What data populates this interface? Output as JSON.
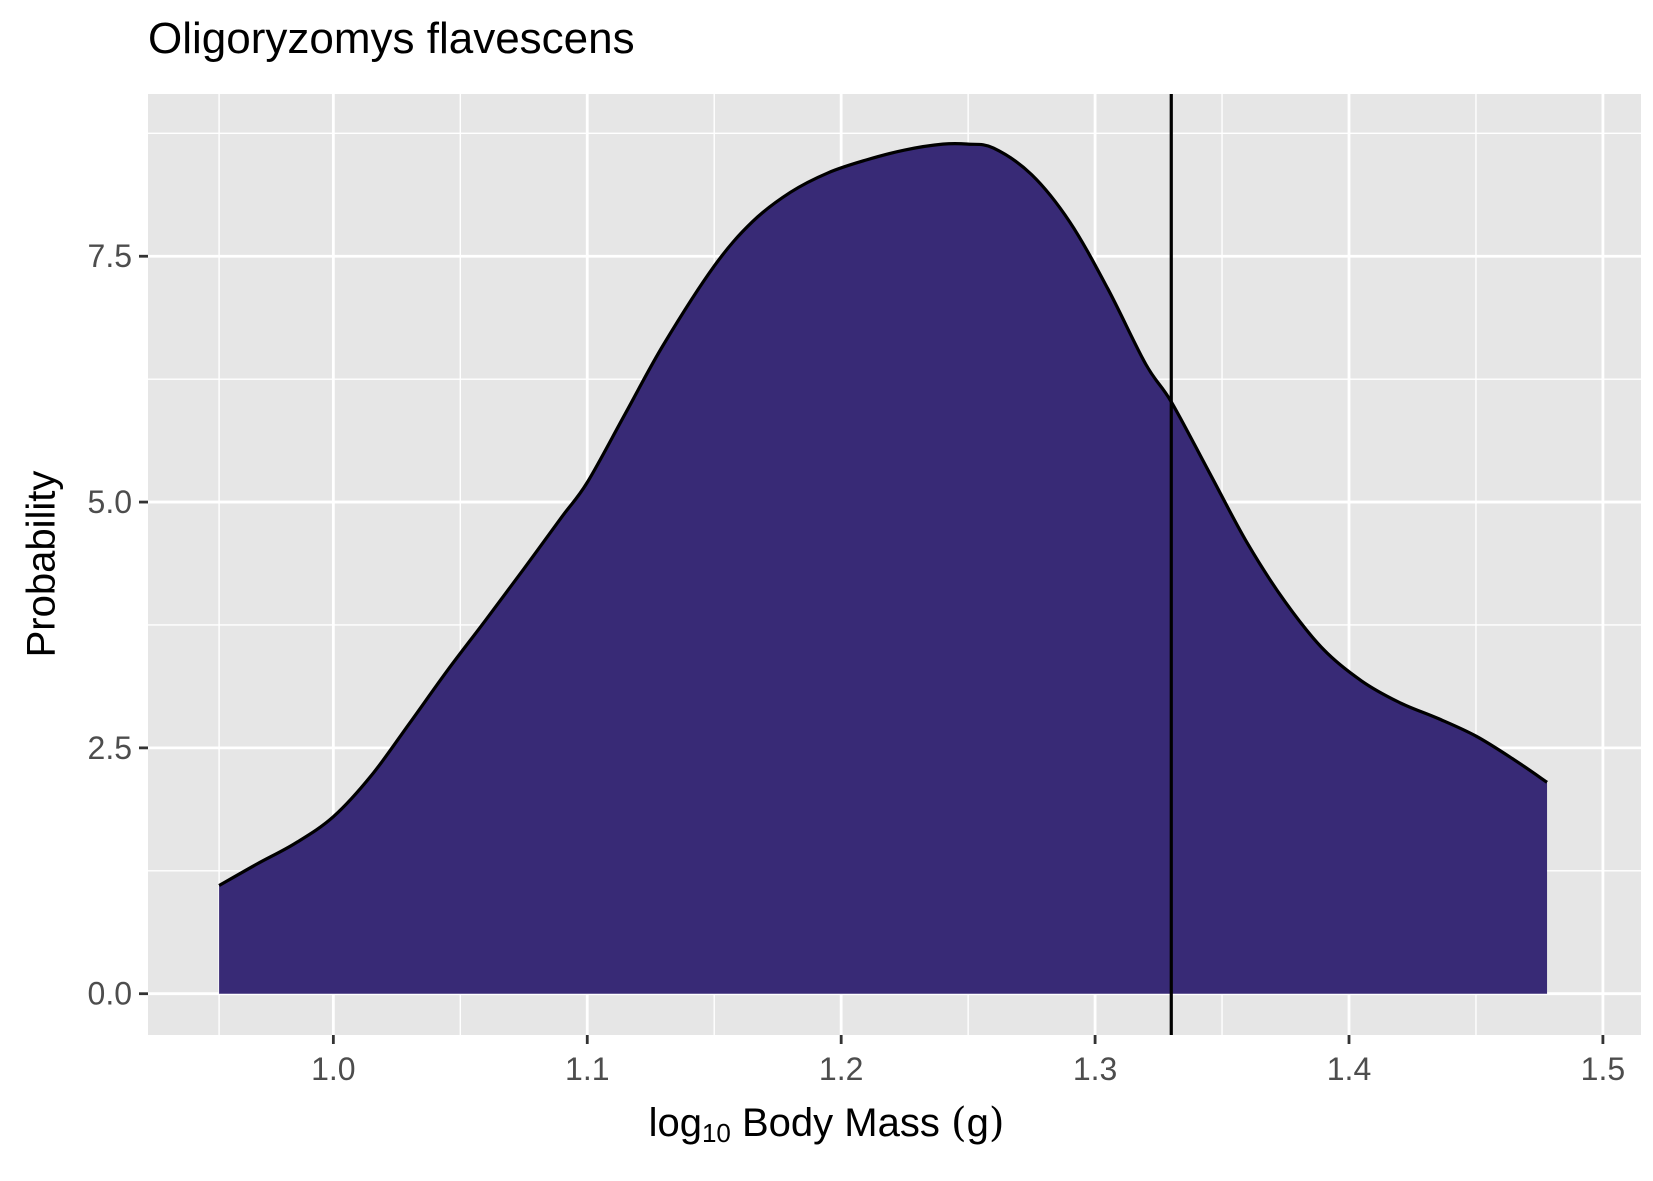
{
  "chart_data": {
    "type": "area",
    "title": "Oligoryzomys flavescens",
    "xlabel": {
      "base": "log",
      "sub": "10",
      "rest": " Body Mass ",
      "unit_open": "(",
      "unit": "g",
      "unit_close": ")"
    },
    "ylabel": "Probability",
    "xlim": [
      0.927,
      1.515
    ],
    "ylim": [
      -0.42,
      9.15
    ],
    "x_ticks": [
      {
        "value": 1.0,
        "label": "1.0"
      },
      {
        "value": 1.1,
        "label": "1.1"
      },
      {
        "value": 1.2,
        "label": "1.2"
      },
      {
        "value": 1.3,
        "label": "1.3"
      },
      {
        "value": 1.4,
        "label": "1.4"
      },
      {
        "value": 1.5,
        "label": "1.5"
      }
    ],
    "x_minor_breaks": [
      0.955,
      1.05,
      1.15,
      1.25,
      1.35,
      1.45
    ],
    "y_ticks": [
      {
        "value": 0.0,
        "label": "0.0"
      },
      {
        "value": 2.5,
        "label": "2.5"
      },
      {
        "value": 5.0,
        "label": "5.0"
      },
      {
        "value": 7.5,
        "label": "7.5"
      }
    ],
    "y_minor_breaks": [
      1.25,
      3.75,
      6.25,
      8.75
    ],
    "grid": true,
    "fill_color": "#382a76",
    "panel_color": "#e6e6e6",
    "vline": {
      "x": 1.33,
      "color": "#000000"
    },
    "series": [
      {
        "x": [
          0.955,
          0.97,
          0.985,
          1.0,
          1.015,
          1.03,
          1.045,
          1.06,
          1.075,
          1.09,
          1.1,
          1.115,
          1.13,
          1.15,
          1.165,
          1.18,
          1.195,
          1.21,
          1.225,
          1.24,
          1.25,
          1.26,
          1.275,
          1.29,
          1.305,
          1.32,
          1.33,
          1.345,
          1.36,
          1.375,
          1.39,
          1.405,
          1.42,
          1.435,
          1.45,
          1.465,
          1.478
        ],
        "y": [
          1.1,
          1.32,
          1.53,
          1.8,
          2.22,
          2.75,
          3.29,
          3.8,
          4.32,
          4.85,
          5.2,
          5.9,
          6.6,
          7.4,
          7.85,
          8.15,
          8.35,
          8.48,
          8.58,
          8.64,
          8.64,
          8.6,
          8.33,
          7.85,
          7.17,
          6.4,
          6.02,
          5.3,
          4.58,
          3.98,
          3.5,
          3.18,
          2.96,
          2.8,
          2.62,
          2.38,
          2.15
        ]
      }
    ]
  }
}
